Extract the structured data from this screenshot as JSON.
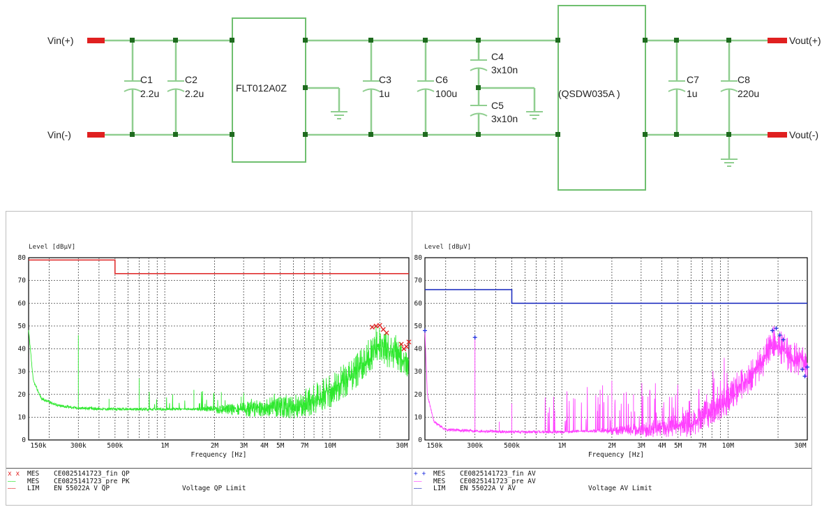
{
  "schematic": {
    "ports": {
      "vin_pos": "Vin(+)",
      "vin_neg": "Vin(-)",
      "vout_pos": "Vout(+)",
      "vout_neg": "Vout(-)"
    },
    "components": {
      "c1": {
        "ref": "C1",
        "value": "2.2u"
      },
      "c2": {
        "ref": "C2",
        "value": "2.2u"
      },
      "filter": "FLT012A0Z",
      "c3": {
        "ref": "C3",
        "value": "1u"
      },
      "c6": {
        "ref": "C6",
        "value": "100u"
      },
      "c4": {
        "ref": "C4",
        "value": "3x10n"
      },
      "c5": {
        "ref": "C5",
        "value": "3x10n"
      },
      "module": "QSDW035A",
      "c7": {
        "ref": "C7",
        "value": "1u"
      },
      "c8": {
        "ref": "C8",
        "value": "220u"
      }
    },
    "colors": {
      "wire": "#8fce8f",
      "node": "#1f6b1f",
      "port": "#e02020",
      "box": "#6fbf6f"
    }
  },
  "chart_data": [
    {
      "type": "line",
      "y_axis_label": "Level [dBµV]",
      "x_axis_label": "Frequency [Hz]",
      "x_scale": "log",
      "xlim": [
        150000,
        30000000
      ],
      "ylim": [
        0,
        80
      ],
      "y_ticks": [
        "0",
        "10",
        "20",
        "30",
        "40",
        "50",
        "60",
        "70",
        "80"
      ],
      "x_ticks": [
        {
          "hz": 150000,
          "label": "150k"
        },
        {
          "hz": 300000,
          "label": "300k"
        },
        {
          "hz": 500000,
          "label": "500k"
        },
        {
          "hz": 1000000,
          "label": "1M"
        },
        {
          "hz": 2000000,
          "label": "2M"
        },
        {
          "hz": 3000000,
          "label": "3M"
        },
        {
          "hz": 4000000,
          "label": "4M"
        },
        {
          "hz": 5000000,
          "label": "5M"
        },
        {
          "hz": 7000000,
          "label": "7M"
        },
        {
          "hz": 10000000,
          "label": "10M"
        },
        {
          "hz": 30000000,
          "label": "30M"
        }
      ],
      "grid": true,
      "limit_line": {
        "points": [
          [
            150000,
            79
          ],
          [
            500000,
            79
          ],
          [
            500000,
            73
          ],
          [
            30000000,
            73
          ]
        ],
        "color": "#e03030"
      },
      "trace": {
        "color": "#2ee82e",
        "style": "pk",
        "baseline": [
          [
            150000,
            48
          ],
          [
            160000,
            26
          ],
          [
            180000,
            18
          ],
          [
            230000,
            15
          ],
          [
            300000,
            14
          ],
          [
            500000,
            13.5
          ],
          [
            1000000,
            13.5
          ],
          [
            3000000,
            14
          ],
          [
            6000000,
            16
          ],
          [
            8000000,
            19
          ],
          [
            10000000,
            23
          ],
          [
            12000000,
            27
          ],
          [
            15000000,
            33
          ],
          [
            18000000,
            40
          ],
          [
            20000000,
            44
          ],
          [
            22000000,
            41
          ],
          [
            25000000,
            40
          ],
          [
            30000000,
            36
          ]
        ],
        "peaks": [
          [
            300000,
            46
          ],
          [
            460000,
            18
          ],
          [
            700000,
            27
          ],
          [
            1500000,
            22
          ],
          [
            2200000,
            21
          ],
          [
            2900000,
            19
          ],
          [
            3500000,
            17
          ],
          [
            3800000,
            16
          ],
          [
            19000000,
            50
          ]
        ]
      },
      "marks": {
        "symbol": "x",
        "color": "#e02020",
        "points": [
          [
            18000000,
            49.5
          ],
          [
            19000000,
            50
          ],
          [
            20000000,
            50.3
          ],
          [
            21000000,
            48.5
          ],
          [
            22000000,
            47
          ],
          [
            27000000,
            42
          ],
          [
            28000000,
            40
          ],
          [
            29000000,
            41
          ],
          [
            30000000,
            43
          ]
        ]
      },
      "legend": [
        {
          "symbol": "x x",
          "tag": "MES",
          "name": "CE0825141723_fin QP",
          "extra": "",
          "color": "#e02020"
        },
        {
          "symbol": "——",
          "tag": "MES",
          "name": "CE0825141723_pre PK",
          "extra": "",
          "color": "#2ee82e"
        },
        {
          "symbol": "——",
          "tag": "LIM",
          "name": "EN 55022A V QP",
          "extra": "Voltage QP Limit",
          "color": "#e03030"
        }
      ]
    },
    {
      "type": "line",
      "y_axis_label": "Level [dBµV]",
      "x_axis_label": "Frequency [Hz]",
      "x_scale": "log",
      "xlim": [
        150000,
        30000000
      ],
      "ylim": [
        0,
        80
      ],
      "y_ticks": [
        "0",
        "10",
        "20",
        "30",
        "40",
        "50",
        "60",
        "70",
        "80"
      ],
      "x_ticks": [
        {
          "hz": 150000,
          "label": "150k"
        },
        {
          "hz": 300000,
          "label": "300k"
        },
        {
          "hz": 500000,
          "label": "500k"
        },
        {
          "hz": 1000000,
          "label": "1M"
        },
        {
          "hz": 2000000,
          "label": "2M"
        },
        {
          "hz": 3000000,
          "label": "3M"
        },
        {
          "hz": 4000000,
          "label": "4M"
        },
        {
          "hz": 5000000,
          "label": "5M"
        },
        {
          "hz": 7000000,
          "label": "7M"
        },
        {
          "hz": 10000000,
          "label": "10M"
        },
        {
          "hz": 30000000,
          "label": "30M"
        }
      ],
      "grid": true,
      "limit_line": {
        "points": [
          [
            150000,
            66
          ],
          [
            500000,
            66
          ],
          [
            500000,
            60
          ],
          [
            30000000,
            60
          ]
        ],
        "color": "#2030c0"
      },
      "trace": {
        "color": "#ff40ff",
        "style": "av",
        "baseline": [
          [
            150000,
            48
          ],
          [
            155000,
            20
          ],
          [
            170000,
            8
          ],
          [
            200000,
            4.5
          ],
          [
            300000,
            4
          ],
          [
            500000,
            3.5
          ],
          [
            1000000,
            3.5
          ],
          [
            3000000,
            5
          ],
          [
            6000000,
            8
          ],
          [
            8000000,
            14
          ],
          [
            10000000,
            20
          ],
          [
            13000000,
            28
          ],
          [
            16000000,
            36
          ],
          [
            19000000,
            45
          ],
          [
            21000000,
            42
          ],
          [
            24000000,
            38
          ],
          [
            30000000,
            35
          ]
        ],
        "peaks": [
          [
            150000,
            48
          ],
          [
            300000,
            45
          ],
          [
            420000,
            8
          ],
          [
            500000,
            16
          ],
          [
            1200000,
            18
          ],
          [
            1700000,
            22
          ],
          [
            2000000,
            26
          ],
          [
            2700000,
            20
          ],
          [
            3300000,
            19
          ],
          [
            19000000,
            49
          ]
        ]
      },
      "marks": {
        "symbol": "+",
        "color": "#2030e0",
        "points": [
          [
            150000,
            48
          ],
          [
            300000,
            45
          ],
          [
            18500000,
            48
          ],
          [
            19500000,
            49
          ],
          [
            20500000,
            46
          ],
          [
            21500000,
            44
          ],
          [
            28000000,
            31
          ],
          [
            29000000,
            28
          ],
          [
            30000000,
            32
          ]
        ]
      },
      "legend": [
        {
          "symbol": "+ +",
          "tag": "MES",
          "name": "CE0825141723_fin AV",
          "extra": "",
          "color": "#2030e0"
        },
        {
          "symbol": "——",
          "tag": "MES",
          "name": "CE0825141723_pre AV",
          "extra": "",
          "color": "#ff40ff"
        },
        {
          "symbol": "——",
          "tag": "LIM",
          "name": "EN 55022A V AV",
          "extra": "Voltage AV Limit",
          "color": "#2030c0"
        }
      ]
    }
  ]
}
